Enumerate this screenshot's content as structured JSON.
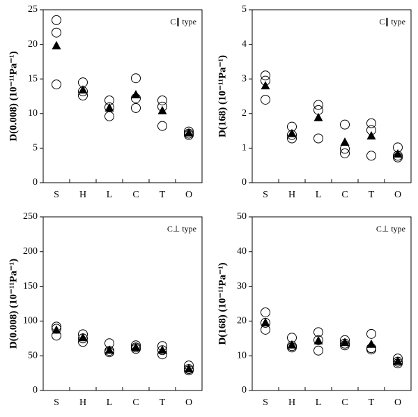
{
  "chart_data": [
    {
      "type": "scatter",
      "annotation": "C∥ type",
      "ylabel": "D(0.008) (10⁻¹¹Pa⁻¹)",
      "categories": [
        "S",
        "H",
        "L",
        "C",
        "T",
        "O"
      ],
      "ylim": [
        0,
        25
      ],
      "yticks": [
        0,
        5,
        10,
        15,
        20,
        25
      ],
      "series": [
        {
          "marker": "circle",
          "color": "#000000",
          "values": [
            23.5,
            14.5,
            11.9,
            15.1,
            11.9,
            7.4
          ]
        },
        {
          "marker": "circle",
          "color": "#000000",
          "values": [
            21.7,
            13.2,
            10.9,
            12.2,
            11.0,
            7.1
          ]
        },
        {
          "marker": "circle",
          "color": "#000000",
          "values": [
            14.2,
            12.6,
            9.6,
            10.8,
            8.2,
            6.9
          ]
        },
        {
          "marker": "triangle",
          "color": "#000000",
          "values": [
            19.8,
            13.4,
            10.8,
            12.7,
            10.4,
            7.2
          ]
        }
      ]
    },
    {
      "type": "scatter",
      "annotation": "C∥ type",
      "ylabel": "D(168) (10⁻¹¹Pa⁻¹)",
      "categories": [
        "S",
        "H",
        "L",
        "C",
        "T",
        "O"
      ],
      "ylim": [
        0,
        5
      ],
      "yticks": [
        0,
        1,
        2,
        3,
        4,
        5
      ],
      "series": [
        {
          "marker": "circle",
          "color": "#000000",
          "values": [
            3.1,
            1.62,
            2.25,
            1.68,
            1.72,
            1.02
          ]
        },
        {
          "marker": "circle",
          "color": "#000000",
          "values": [
            2.95,
            1.38,
            2.1,
            0.98,
            1.52,
            0.78
          ]
        },
        {
          "marker": "circle",
          "color": "#000000",
          "values": [
            2.4,
            1.28,
            1.28,
            0.85,
            0.78,
            0.73
          ]
        },
        {
          "marker": "triangle",
          "color": "#000000",
          "values": [
            2.8,
            1.42,
            1.88,
            1.17,
            1.35,
            0.83
          ]
        }
      ]
    },
    {
      "type": "scatter",
      "annotation": "C⊥ type",
      "ylabel": "D(0.008) (10⁻¹¹Pa⁻¹)",
      "categories": [
        "S",
        "H",
        "L",
        "C",
        "T",
        "O"
      ],
      "ylim": [
        0,
        250
      ],
      "yticks": [
        0,
        50,
        100,
        150,
        200,
        250
      ],
      "series": [
        {
          "marker": "circle",
          "color": "#000000",
          "values": [
            92,
            81,
            68,
            65,
            64,
            36
          ]
        },
        {
          "marker": "circle",
          "color": "#000000",
          "values": [
            89,
            75,
            57,
            62,
            58,
            31
          ]
        },
        {
          "marker": "circle",
          "color": "#000000",
          "values": [
            79,
            70,
            55,
            60,
            52,
            29
          ]
        },
        {
          "marker": "triangle",
          "color": "#000000",
          "values": [
            87,
            76,
            58,
            62,
            58,
            31
          ]
        }
      ]
    },
    {
      "type": "scatter",
      "annotation": "C⊥ type",
      "ylabel": "D(168) (10⁻¹¹Pa⁻¹)",
      "categories": [
        "S",
        "H",
        "L",
        "C",
        "T",
        "O"
      ],
      "ylim": [
        0,
        50
      ],
      "yticks": [
        0,
        10,
        20,
        30,
        40,
        50
      ],
      "series": [
        {
          "marker": "circle",
          "color": "#000000",
          "values": [
            22.5,
            15.2,
            16.8,
            14.5,
            16.3,
            9.2
          ]
        },
        {
          "marker": "circle",
          "color": "#000000",
          "values": [
            19.5,
            12.8,
            14.5,
            13.5,
            12.2,
            8.3
          ]
        },
        {
          "marker": "circle",
          "color": "#000000",
          "values": [
            17.5,
            12.4,
            11.5,
            13.0,
            11.8,
            7.8
          ]
        },
        {
          "marker": "triangle",
          "color": "#000000",
          "values": [
            19.5,
            13.1,
            14.3,
            13.8,
            13.3,
            8.4
          ]
        }
      ]
    }
  ]
}
